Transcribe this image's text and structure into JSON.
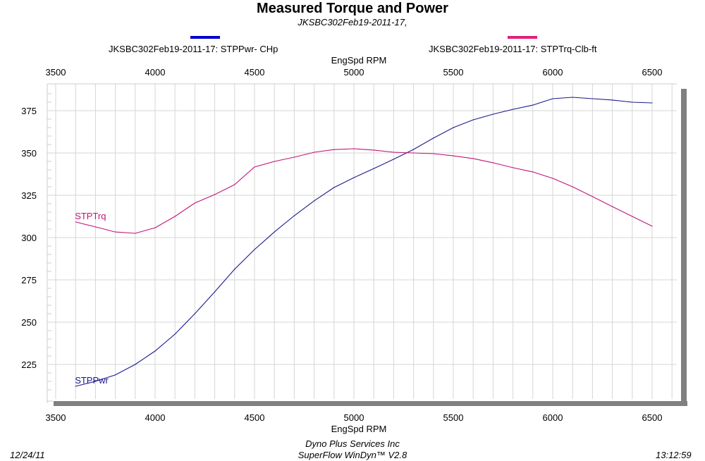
{
  "header": {
    "title": "Measured Torque and Power",
    "subtitle": "JKSBC302Feb19-2011-17,"
  },
  "footer": {
    "date": "12/24/11",
    "company": "Dyno Plus Services Inc",
    "software": "SuperFlow WinDyn™ V2.8",
    "time": "13:12:59"
  },
  "chart_data": {
    "type": "line",
    "title": "Measured Torque and Power",
    "subtitle": "JKSBC302Feb19-2011-17,",
    "xlabel": "EngSpd  RPM",
    "ylabel": "",
    "xlim": [
      3500,
      6650
    ],
    "ylim": [
      207,
      382
    ],
    "xticks": [
      3500,
      4000,
      4500,
      5000,
      5500,
      6000,
      6500
    ],
    "yticks": [
      225,
      250,
      275,
      300,
      325,
      350,
      375
    ],
    "grid": true,
    "legend_placement": "top",
    "x": [
      3600,
      3700,
      3800,
      3900,
      4000,
      4100,
      4200,
      4300,
      4400,
      4500,
      4600,
      4700,
      4800,
      4900,
      5000,
      5100,
      5200,
      5300,
      5400,
      5500,
      5600,
      5700,
      5800,
      5900,
      6000,
      6100,
      6200,
      6300,
      6400,
      6500
    ],
    "series": [
      {
        "name": "JKSBC302Feb19-2011-17: STPPwr- CHp",
        "label": "STPPwr",
        "color": "#0000cc",
        "line_color": "#1a1a8c",
        "values": [
          212.1,
          215.0,
          218.8,
          225.0,
          232.9,
          242.9,
          255.0,
          267.9,
          281.3,
          292.9,
          303.3,
          312.9,
          321.7,
          329.6,
          335.4,
          340.8,
          346.3,
          352.1,
          358.8,
          365.0,
          369.6,
          372.9,
          375.8,
          378.3,
          382.1,
          382.9,
          382.1,
          381.3,
          380.0,
          379.6
        ]
      },
      {
        "name": "JKSBC302Feb19-2011-17: STPTrq-Clb-ft",
        "label": "STPTrq",
        "color": "#e0207a",
        "line_color": "#c0157a",
        "values": [
          309.2,
          306.3,
          303.3,
          302.5,
          305.8,
          312.5,
          320.4,
          325.4,
          331.3,
          341.7,
          345.0,
          347.5,
          350.4,
          352.0,
          352.5,
          351.7,
          350.4,
          350.0,
          349.6,
          348.3,
          346.7,
          344.2,
          341.3,
          338.8,
          335.0,
          330.0,
          324.2,
          318.3,
          312.5,
          306.7
        ]
      }
    ]
  }
}
